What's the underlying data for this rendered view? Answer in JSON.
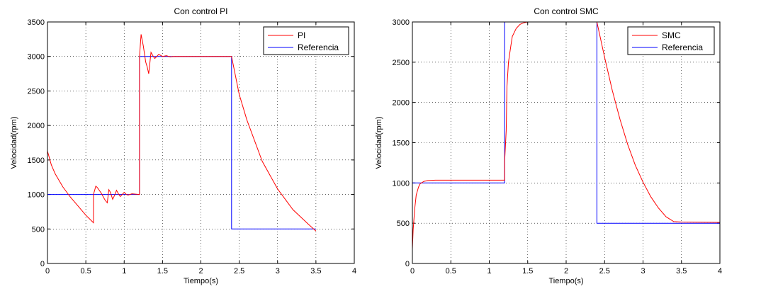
{
  "chart_data": [
    {
      "type": "line",
      "title": "Con control PI",
      "xlabel": "Tiempo(s)",
      "ylabel": "Velocidad(rpm)",
      "xlim": [
        0,
        4
      ],
      "ylim": [
        0,
        3500
      ],
      "xticks": [
        "0",
        "0.5",
        "1",
        "1.5",
        "2",
        "2.5",
        "3",
        "3.5",
        "4"
      ],
      "yticks": [
        "0",
        "500",
        "1000",
        "1500",
        "2000",
        "2500",
        "3000",
        "3500"
      ],
      "grid": true,
      "legend": "top-right",
      "series": [
        {
          "name": "PI",
          "color": "#ff0000",
          "x": [
            0,
            0.05,
            0.1,
            0.2,
            0.3,
            0.4,
            0.5,
            0.6,
            0.6,
            0.63,
            0.65,
            0.7,
            0.75,
            0.78,
            0.8,
            0.82,
            0.85,
            0.88,
            0.9,
            0.93,
            0.95,
            1.0,
            1.03,
            1.05,
            1.1,
            1.2,
            1.2,
            1.22,
            1.25,
            1.28,
            1.3,
            1.32,
            1.35,
            1.38,
            1.4,
            1.45,
            1.5,
            1.55,
            1.6,
            1.65,
            2.4,
            2.5,
            2.6,
            2.8,
            3.0,
            3.2,
            3.4,
            3.5
          ],
          "y": [
            1630,
            1430,
            1300,
            1110,
            960,
            830,
            700,
            590,
            1000,
            1120,
            1100,
            1020,
            920,
            880,
            1070,
            1030,
            930,
            1000,
            1060,
            1000,
            970,
            1030,
            1000,
            990,
            1010,
            1000,
            3000,
            3320,
            3150,
            2920,
            2850,
            2750,
            3060,
            3000,
            2970,
            3030,
            3000,
            3010,
            2995,
            3000,
            3000,
            2450,
            2080,
            1480,
            1080,
            780,
            570,
            470
          ]
        },
        {
          "name": "Referencia",
          "color": "#0000ff",
          "x": [
            0,
            1.2,
            1.2,
            2.4,
            2.4,
            3.5
          ],
          "y": [
            1000,
            1000,
            3000,
            3000,
            500,
            500
          ]
        }
      ]
    },
    {
      "type": "line",
      "title": "Con control SMC",
      "xlabel": "Tiempo(s)",
      "ylabel": "Velocidad(rpm)",
      "xlim": [
        0,
        4
      ],
      "ylim": [
        0,
        3000
      ],
      "xticks": [
        "0",
        "0.5",
        "1",
        "1.5",
        "2",
        "2.5",
        "3",
        "3.5",
        "4"
      ],
      "yticks": [
        "0",
        "500",
        "1000",
        "1500",
        "2000",
        "2500",
        "3000"
      ],
      "grid": true,
      "legend": "top-right",
      "series": [
        {
          "name": "SMC",
          "color": "#ff0000",
          "x": [
            0,
            0.01,
            0.03,
            0.05,
            0.08,
            0.1,
            0.15,
            0.2,
            0.3,
            0.5,
            1.0,
            1.2,
            1.2,
            1.22,
            1.23,
            1.25,
            1.28,
            1.3,
            1.35,
            1.4,
            1.45,
            1.5,
            2.4,
            2.5,
            2.6,
            2.7,
            2.8,
            2.9,
            3.0,
            3.1,
            3.2,
            3.3,
            3.4,
            3.5,
            4.0
          ],
          "y": [
            180,
            420,
            680,
            850,
            950,
            990,
            1020,
            1030,
            1035,
            1035,
            1035,
            1035,
            1270,
            1650,
            2200,
            2500,
            2700,
            2820,
            2920,
            2970,
            2990,
            3000,
            3000,
            2560,
            2150,
            1790,
            1480,
            1220,
            1010,
            830,
            690,
            580,
            520,
            515,
            510
          ]
        },
        {
          "name": "Referencia",
          "color": "#0000ff",
          "x": [
            0,
            1.2,
            1.2,
            2.4,
            2.4,
            4.0
          ],
          "y": [
            1000,
            1000,
            3000,
            3000,
            500,
            500
          ]
        }
      ]
    }
  ]
}
